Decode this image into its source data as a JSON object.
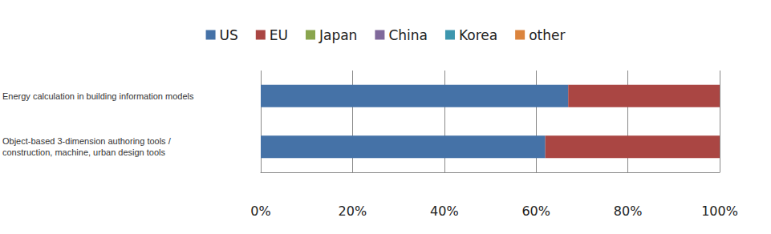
{
  "chart_data": {
    "type": "bar",
    "orientation": "horizontal",
    "stacked": true,
    "categories": [
      "Energy calculation in building information models",
      "Object-based 3-dimension authoring tools / construction, machine, urban design tools"
    ],
    "series": [
      {
        "name": "US",
        "color": "#4572a7",
        "values": [
          67,
          62
        ]
      },
      {
        "name": "EU",
        "color": "#aa4643",
        "values": [
          33,
          38
        ]
      },
      {
        "name": "Japan",
        "color": "#89a54e",
        "values": [
          0,
          0
        ]
      },
      {
        "name": "China",
        "color": "#80699b",
        "values": [
          0,
          0
        ]
      },
      {
        "name": "Korea",
        "color": "#3d96ae",
        "values": [
          0,
          0
        ]
      },
      {
        "name": "other",
        "color": "#db843d",
        "values": [
          0,
          0
        ]
      }
    ],
    "xlim": [
      0,
      100
    ],
    "xticks": [
      {
        "value": 0,
        "label": "0%"
      },
      {
        "value": 20,
        "label": "20%"
      },
      {
        "value": 40,
        "label": "40%"
      },
      {
        "value": 60,
        "label": "60%"
      },
      {
        "value": 80,
        "label": "80%"
      },
      {
        "value": 100,
        "label": "100%"
      }
    ],
    "grid": true,
    "legend": "top"
  }
}
